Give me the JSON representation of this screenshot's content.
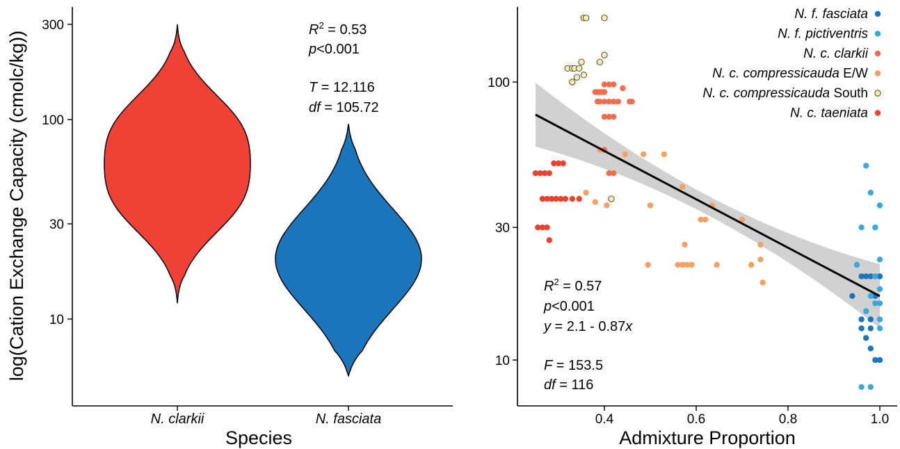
{
  "chart_data": [
    {
      "type": "violin",
      "xlabel": "Species",
      "ylabel": "log(Cation Exchange Capacity (cmolc/kg))",
      "y_scale": "log",
      "ylim": [
        5,
        400
      ],
      "yticks": [
        10,
        30,
        100,
        300
      ],
      "categories": [
        {
          "name": "N. clarkii",
          "color": "#EF4136",
          "min": 12,
          "max": 300,
          "modes": [
            90,
            40
          ]
        },
        {
          "name": "N. fasciata",
          "color": "#1B75BB",
          "min": 5.2,
          "max": 95,
          "modes": [
            20
          ]
        }
      ],
      "annotation": {
        "r2_label": "R",
        "r2_sup": "2",
        "r2_value": " = 0.53",
        "p_label": "p",
        "p_value": "<0.001",
        "t_label": "T",
        "t_value": " = 12.116",
        "df_label": "df",
        "df_value": " = 105.72"
      }
    },
    {
      "type": "scatter",
      "xlabel": "Admixture Proportion",
      "ylabel": "",
      "y_scale": "log",
      "xlim": [
        0.215,
        1.04
      ],
      "ylim": [
        7,
        200
      ],
      "xticks": [
        0.4,
        0.6,
        0.8,
        1.0
      ],
      "xtick_labels": [
        "0.4",
        "0.6",
        "0.8",
        "1.0"
      ],
      "yticks": [
        10,
        30,
        100
      ],
      "fit": {
        "intercept": 2.1,
        "slope": -0.87,
        "x_range": [
          0.25,
          1.0
        ],
        "band_color": "#CCCCCC"
      },
      "series": [
        {
          "name_italic": "N. f. fasciata",
          "name_rest": "",
          "color": "#1B75BB",
          "points": [
            [
              0.94,
              17
            ],
            [
              0.96,
              20
            ],
            [
              0.96,
              14
            ],
            [
              0.96,
              13
            ],
            [
              0.97,
              20
            ],
            [
              0.97,
              12
            ],
            [
              0.98,
              20
            ],
            [
              0.98,
              14
            ],
            [
              0.98,
              13
            ],
            [
              0.99,
              10
            ],
            [
              1.0,
              20
            ],
            [
              1.0,
              10
            ],
            [
              0.98,
              11
            ],
            [
              0.99,
              17
            ]
          ]
        },
        {
          "name_italic": "N. f. pictiventris",
          "name_rest": "",
          "color": "#39A9DC",
          "points": [
            [
              0.96,
              8
            ],
            [
              0.98,
              8
            ],
            [
              0.97,
              50
            ],
            [
              0.98,
              40
            ],
            [
              0.99,
              30
            ],
            [
              1.0,
              36
            ],
            [
              1.0,
              23
            ],
            [
              0.96,
              30
            ],
            [
              0.95,
              22
            ],
            [
              0.99,
              20
            ],
            [
              0.98,
              17
            ],
            [
              0.99,
              16
            ],
            [
              0.97,
              15
            ],
            [
              1.0,
              18
            ],
            [
              1.0,
              16
            ],
            [
              1.0,
              14
            ],
            [
              1.0,
              13
            ],
            [
              0.99,
              20
            ]
          ]
        },
        {
          "name_italic": "N. c. clarkii",
          "name_rest": "",
          "color": "#F26D50",
          "points": [
            [
              0.38,
              92
            ],
            [
              0.385,
              92
            ],
            [
              0.39,
              92
            ],
            [
              0.395,
              92
            ],
            [
              0.4,
              92
            ],
            [
              0.4,
              98
            ],
            [
              0.41,
              98
            ],
            [
              0.42,
              98
            ],
            [
              0.385,
              85
            ],
            [
              0.39,
              85
            ],
            [
              0.4,
              85
            ],
            [
              0.41,
              85
            ],
            [
              0.42,
              85
            ],
            [
              0.43,
              85
            ],
            [
              0.455,
              85
            ],
            [
              0.46,
              85
            ],
            [
              0.44,
              95
            ],
            [
              0.4,
              75
            ],
            [
              0.41,
              75
            ],
            [
              0.42,
              75
            ],
            [
              0.4,
              57
            ],
            [
              0.41,
              47
            ],
            [
              0.42,
              47
            ]
          ]
        },
        {
          "name_italic": "N. c. compressicauda",
          "name_rest": " E/W",
          "color": "#F7A064",
          "points": [
            [
              0.39,
              57
            ],
            [
              0.445,
              55
            ],
            [
              0.485,
              55
            ],
            [
              0.53,
              55
            ],
            [
              0.57,
              42
            ],
            [
              0.405,
              36
            ],
            [
              0.5,
              36
            ],
            [
              0.61,
              32
            ],
            [
              0.62,
              32
            ],
            [
              0.635,
              36
            ],
            [
              0.7,
              32
            ],
            [
              0.575,
              26
            ],
            [
              0.74,
              26
            ],
            [
              0.495,
              22
            ],
            [
              0.56,
              22
            ],
            [
              0.57,
              22
            ],
            [
              0.58,
              22
            ],
            [
              0.59,
              22
            ],
            [
              0.645,
              22
            ],
            [
              0.72,
              22
            ],
            [
              0.74,
              23
            ],
            [
              0.745,
              19
            ],
            [
              0.38,
              37
            ],
            [
              0.36,
              40
            ]
          ]
        },
        {
          "name_italic": "N. c. compressicauda",
          "name_rest": " South",
          "color": "#F2F2AA",
          "points": [
            [
              0.355,
              170
            ],
            [
              0.36,
              170
            ],
            [
              0.4,
              170
            ],
            [
              0.4,
              125
            ],
            [
              0.39,
              118
            ],
            [
              0.32,
              112
            ],
            [
              0.33,
              112
            ],
            [
              0.335,
              112
            ],
            [
              0.345,
              112
            ],
            [
              0.35,
              118
            ],
            [
              0.34,
              104
            ],
            [
              0.33,
              100
            ],
            [
              0.355,
              106
            ],
            [
              0.415,
              38
            ]
          ]
        },
        {
          "name_italic": "N. c. taeniata",
          "name_rest": "",
          "color": "#E8432F",
          "points": [
            [
              0.25,
              47
            ],
            [
              0.26,
              47
            ],
            [
              0.27,
              47
            ],
            [
              0.28,
              47
            ],
            [
              0.29,
              51
            ],
            [
              0.3,
              51
            ],
            [
              0.31,
              51
            ],
            [
              0.265,
              38
            ],
            [
              0.275,
              38
            ],
            [
              0.285,
              38
            ],
            [
              0.295,
              38
            ],
            [
              0.305,
              38
            ],
            [
              0.315,
              38
            ],
            [
              0.33,
              38
            ],
            [
              0.345,
              38
            ],
            [
              0.255,
              30
            ],
            [
              0.265,
              30
            ],
            [
              0.275,
              30
            ],
            [
              0.28,
              27
            ]
          ]
        }
      ],
      "annotation": {
        "r2_label": "R",
        "r2_sup": "2",
        "r2_value": " = 0.57",
        "p_label": "p",
        "p_value": "<0.001",
        "eq_y": "y",
        "eq_mid": " = 2.1 - 0.87",
        "eq_x": "x",
        "f_label": "F",
        "f_value": " = 153.5",
        "df_label": "df",
        "df_value": " = 116"
      }
    }
  ]
}
